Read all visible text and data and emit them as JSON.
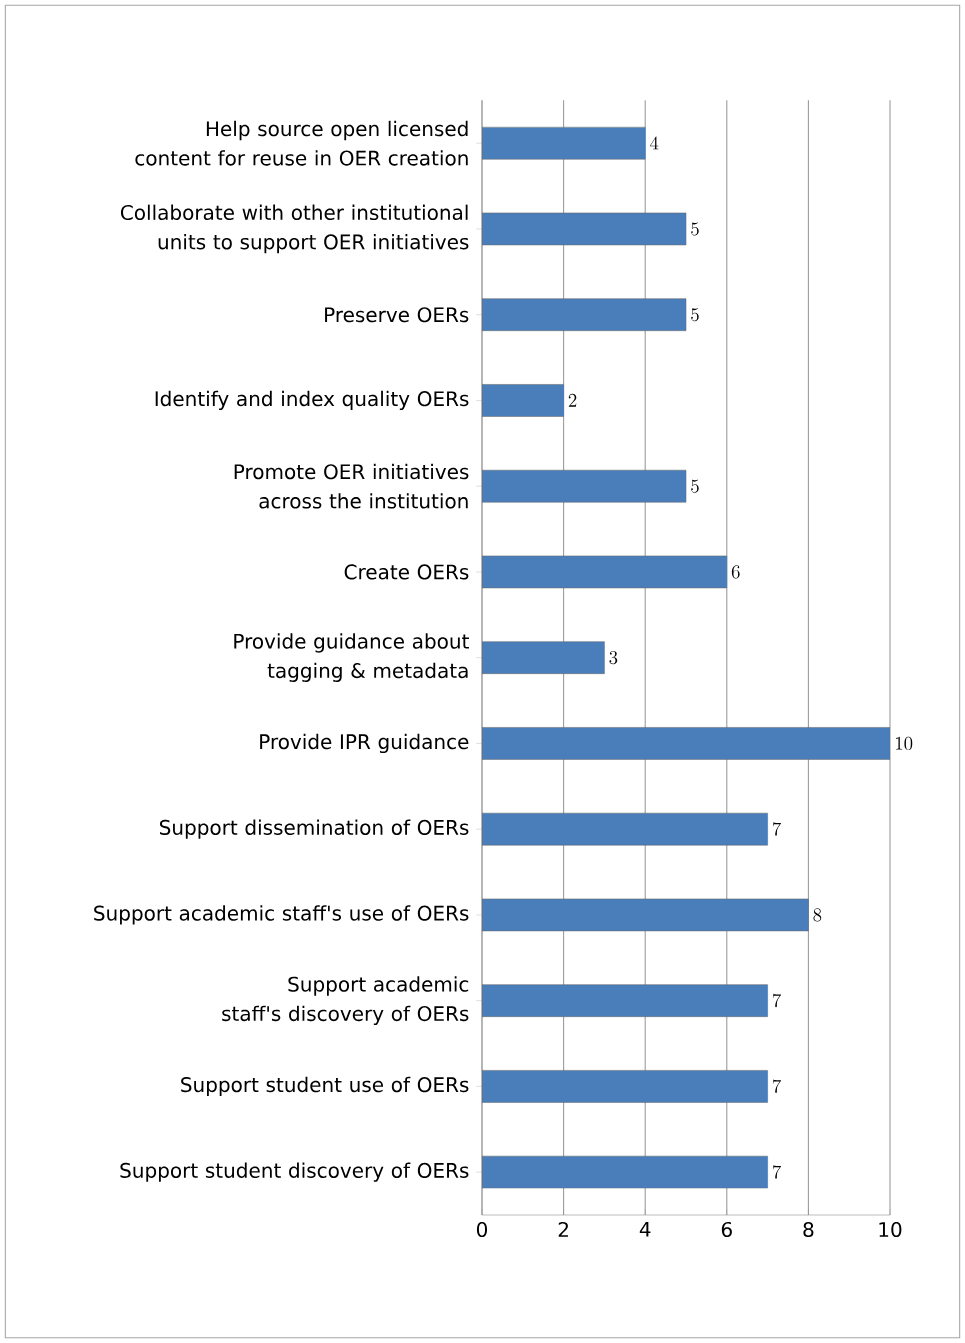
{
  "chart_data": {
    "type": "bar",
    "orientation": "horizontal",
    "categories": [
      "Help source open licensed content for reuse in  OER creation",
      "Collaborate with other institutional units to support OER initiatives",
      "Preserve OERs",
      "Identify and index quality OERs",
      "Promote OER initiatives across the institution",
      "Create OERs",
      "Provide guidance about tagging & metadata",
      "Provide IPR guidance",
      "Support dissemination of OERs",
      "Support academic staff's use of OERs",
      "Support academic staff's discovery of OERs",
      "Support student use of OERs",
      "Support student discovery of OERs"
    ],
    "values": [
      4,
      5,
      5,
      2,
      5,
      6,
      3,
      10,
      7,
      8,
      7,
      7,
      7
    ],
    "color": "#4a7ebb",
    "xlim": [
      0,
      10
    ],
    "xticks": [
      0,
      2,
      4,
      6,
      8,
      10
    ],
    "grid": "x",
    "data_labels": true
  }
}
